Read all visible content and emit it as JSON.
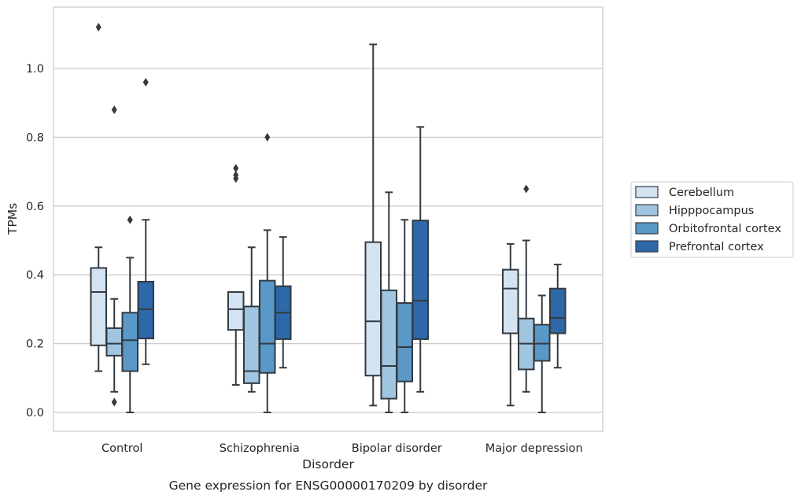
{
  "chart_data": {
    "type": "box",
    "caption": "Gene expression for ENSG00000170209 by disorder",
    "xlabel": "Disorder",
    "ylabel": "TPMs",
    "ylim": [
      -0.055,
      1.18
    ],
    "yticks": [
      "0.0",
      "0.2",
      "0.4",
      "0.6",
      "0.8",
      "1.0"
    ],
    "grid": true,
    "legend_position": "right",
    "categories": [
      "Control",
      "Schizophrenia",
      "Bipolar disorder",
      "Major depression"
    ],
    "series": [
      {
        "name": "Cerebellum",
        "color": "#d3e3f2",
        "boxes": [
          {
            "whisker_low": 0.12,
            "q1": 0.195,
            "median": 0.35,
            "q3": 0.42,
            "whisker_high": 0.48,
            "outliers": [
              1.12
            ]
          },
          {
            "whisker_low": 0.08,
            "q1": 0.24,
            "median": 0.3,
            "q3": 0.35,
            "whisker_high": 0.35,
            "outliers": [
              0.68,
              0.69,
              0.71
            ]
          },
          {
            "whisker_low": 0.02,
            "q1": 0.107,
            "median": 0.265,
            "q3": 0.495,
            "whisker_high": 1.07,
            "outliers": []
          },
          {
            "whisker_low": 0.02,
            "q1": 0.23,
            "median": 0.36,
            "q3": 0.415,
            "whisker_high": 0.49,
            "outliers": []
          }
        ]
      },
      {
        "name": "Hipppocampus",
        "color": "#9fc5e0",
        "boxes": [
          {
            "whisker_low": 0.06,
            "q1": 0.165,
            "median": 0.2,
            "q3": 0.245,
            "whisker_high": 0.33,
            "outliers": [
              0.03,
              0.88
            ]
          },
          {
            "whisker_low": 0.06,
            "q1": 0.085,
            "median": 0.12,
            "q3": 0.308,
            "whisker_high": 0.48,
            "outliers": []
          },
          {
            "whisker_low": 0.0,
            "q1": 0.04,
            "median": 0.135,
            "q3": 0.355,
            "whisker_high": 0.64,
            "outliers": []
          },
          {
            "whisker_low": 0.06,
            "q1": 0.125,
            "median": 0.2,
            "q3": 0.273,
            "whisker_high": 0.5,
            "outliers": [
              0.65
            ]
          }
        ]
      },
      {
        "name": "Orbitofrontal cortex",
        "color": "#5a98c8",
        "boxes": [
          {
            "whisker_low": 0.0,
            "q1": 0.12,
            "median": 0.21,
            "q3": 0.29,
            "whisker_high": 0.45,
            "outliers": [
              0.56
            ]
          },
          {
            "whisker_low": 0.0,
            "q1": 0.115,
            "median": 0.2,
            "q3": 0.383,
            "whisker_high": 0.53,
            "outliers": [
              0.8
            ]
          },
          {
            "whisker_low": 0.0,
            "q1": 0.09,
            "median": 0.19,
            "q3": 0.318,
            "whisker_high": 0.56,
            "outliers": []
          },
          {
            "whisker_low": 0.0,
            "q1": 0.15,
            "median": 0.2,
            "q3": 0.255,
            "whisker_high": 0.34,
            "outliers": []
          }
        ]
      },
      {
        "name": "Prefrontal cortex",
        "color": "#2d68a8",
        "boxes": [
          {
            "whisker_low": 0.14,
            "q1": 0.215,
            "median": 0.3,
            "q3": 0.38,
            "whisker_high": 0.56,
            "outliers": [
              0.96
            ]
          },
          {
            "whisker_low": 0.13,
            "q1": 0.213,
            "median": 0.29,
            "q3": 0.367,
            "whisker_high": 0.51,
            "outliers": []
          },
          {
            "whisker_low": 0.06,
            "q1": 0.213,
            "median": 0.325,
            "q3": 0.558,
            "whisker_high": 0.83,
            "outliers": []
          },
          {
            "whisker_low": 0.13,
            "q1": 0.23,
            "median": 0.275,
            "q3": 0.36,
            "whisker_high": 0.43,
            "outliers": []
          }
        ]
      }
    ]
  }
}
